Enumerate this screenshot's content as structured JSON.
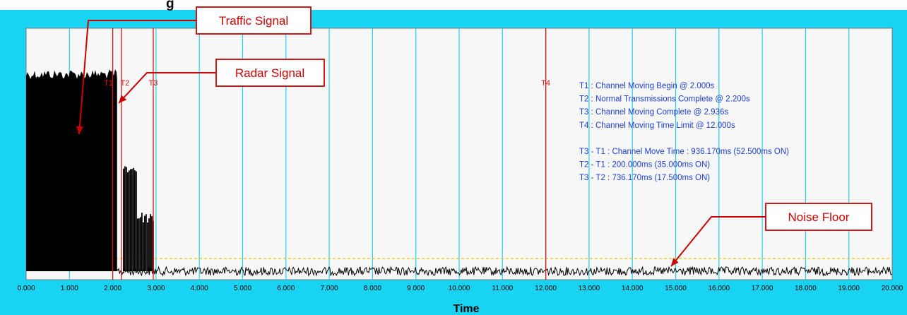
{
  "chart_data": {
    "type": "line",
    "title_fragment": "g",
    "xlabel": "Time",
    "xlim": [
      0,
      20
    ],
    "x_ticks": [
      "0.000",
      "1.000",
      "2.000",
      "3.000",
      "4.000",
      "5.000",
      "6.000",
      "7.000",
      "8.000",
      "9.000",
      "10.000",
      "11.000",
      "12.000",
      "13.000",
      "14.000",
      "15.000",
      "16.000",
      "17.000",
      "18.000",
      "19.000",
      "20.000"
    ],
    "grid": "vertical",
    "markers": [
      {
        "label": "T1",
        "x": 2.0
      },
      {
        "label": "T2",
        "x": 2.2
      },
      {
        "label": "T3",
        "x": 2.936
      },
      {
        "label": "T4",
        "x": 12.0
      }
    ],
    "info_lines": [
      "T1 : Channel Moving Begin @ 2.000s",
      "T2 : Normal Transmissions Complete @ 2.200s",
      "T3 : Channel Moving Complete @ 2.936s",
      "T4 : Channel Moving Time Limit @ 12.000s",
      "",
      "T3 - T1 : Channel Move Time : 936.170ms (52.500ms ON)",
      "T2 - T1 : 200.000ms (35.000ms ON)",
      "T3 - T2 : 736.170ms (17.500ms ON)"
    ],
    "signal_description": {
      "traffic_block_x": [
        0.0,
        2.1
      ],
      "radar_bursts_x": [
        2.2,
        2.936
      ],
      "threshold_line": "dashed yellow"
    },
    "callouts": [
      {
        "label": "Traffic Signal"
      },
      {
        "label": "Radar Signal"
      },
      {
        "label": "Noise Floor"
      }
    ]
  },
  "colors": {
    "frame": "#19d3f2",
    "plot_bg": "#f7f7f7",
    "grid": "#19d3f2",
    "marker": "#e01010",
    "info_text": "#1c3fd6",
    "signal": "#000000",
    "threshold": "#e8c800",
    "callout": "#cc0000"
  }
}
